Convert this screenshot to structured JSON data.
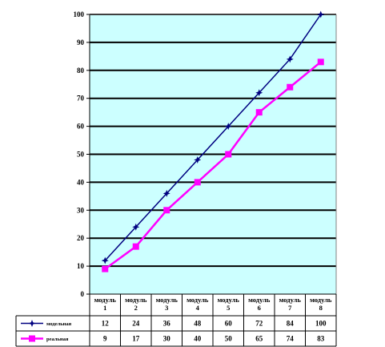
{
  "chart_data": {
    "type": "line",
    "categories": [
      "модуль 1",
      "модуль 2",
      "модуль 3",
      "модуль 4",
      "модуль 5",
      "модуль 6",
      "модуль 7",
      "модуль 8"
    ],
    "category_lines": [
      [
        "модуль",
        "1"
      ],
      [
        "модуль",
        "2"
      ],
      [
        "модуль",
        "3"
      ],
      [
        "модуль",
        "4"
      ],
      [
        "модуль",
        "5"
      ],
      [
        "модуль",
        "6"
      ],
      [
        "модуль",
        "7"
      ],
      [
        "модуль",
        "8"
      ]
    ],
    "y_ticks": [
      0,
      10,
      20,
      30,
      40,
      50,
      60,
      70,
      80,
      90,
      100
    ],
    "ylim": [
      0,
      100
    ],
    "grid": true,
    "legend": "table-below",
    "series": [
      {
        "name": "модельная",
        "color": "#000080",
        "marker": "star",
        "values": [
          12,
          24,
          36,
          48,
          60,
          72,
          84,
          100
        ]
      },
      {
        "name": "реальная",
        "color": "#ff00ff",
        "marker": "square",
        "values": [
          9,
          17,
          30,
          40,
          50,
          65,
          74,
          83
        ]
      }
    ],
    "colors": {
      "plot_background": "#ccffff",
      "gridline": "#000000"
    }
  }
}
